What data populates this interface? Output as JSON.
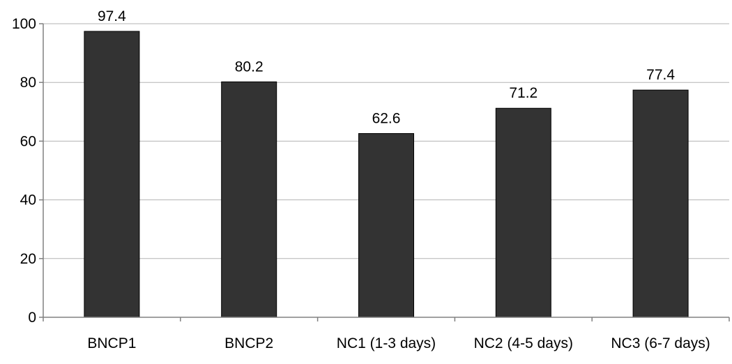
{
  "chart_data": {
    "type": "bar",
    "title": "",
    "xlabel": "",
    "ylabel": "",
    "categories": [
      "BNCP1",
      "BNCP2",
      "NC1 (1-3 days)",
      "NC2 (4-5 days)",
      "NC3 (6-7 days)"
    ],
    "values": [
      97.4,
      80.2,
      62.6,
      71.2,
      77.4
    ],
    "data_labels": [
      "97.4",
      "80.2",
      "62.6",
      "71.2",
      "77.4"
    ],
    "ylim": [
      0,
      100
    ],
    "yticks": [
      0,
      20,
      40,
      60,
      80,
      100
    ],
    "grid": true,
    "legend": "none",
    "bar_color": "#333333",
    "grid_color": "#b3b3b3"
  }
}
